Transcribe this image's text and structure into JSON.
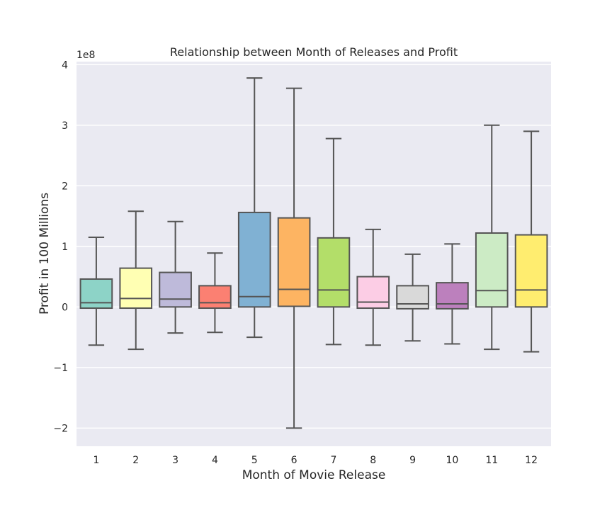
{
  "chart_data": {
    "type": "box",
    "title": "Relationship between Month of Releases and Profit",
    "xlabel": "Month of Movie Release",
    "ylabel": "Profit in 100 Millions",
    "y_offset_label": "1e8",
    "y_scale_factor": 100000000,
    "ylim": [
      -2.3,
      4.05
    ],
    "y_ticks": [
      -2,
      -1,
      0,
      1,
      2,
      3,
      4
    ],
    "y_tick_labels": [
      "−2",
      "−1",
      "0",
      "1",
      "2",
      "3",
      "4"
    ],
    "grid": true,
    "categories": [
      "1",
      "2",
      "3",
      "4",
      "5",
      "6",
      "7",
      "8",
      "9",
      "10",
      "11",
      "12"
    ],
    "boxes": [
      {
        "category": "1",
        "whisker_low": -0.63,
        "q1": -0.02,
        "median": 0.07,
        "q3": 0.46,
        "whisker_high": 1.15,
        "color": "#8dd3c7"
      },
      {
        "category": "2",
        "whisker_low": -0.7,
        "q1": -0.02,
        "median": 0.14,
        "q3": 0.64,
        "whisker_high": 1.58,
        "color": "#ffffb3"
      },
      {
        "category": "3",
        "whisker_low": -0.43,
        "q1": 0.0,
        "median": 0.13,
        "q3": 0.57,
        "whisker_high": 1.41,
        "color": "#bebada"
      },
      {
        "category": "4",
        "whisker_low": -0.42,
        "q1": -0.02,
        "median": 0.07,
        "q3": 0.35,
        "whisker_high": 0.89,
        "color": "#fb8072"
      },
      {
        "category": "5",
        "whisker_low": -0.5,
        "q1": 0.0,
        "median": 0.17,
        "q3": 1.56,
        "whisker_high": 3.78,
        "color": "#80b1d3"
      },
      {
        "category": "6",
        "whisker_low": -2.0,
        "q1": 0.01,
        "median": 0.29,
        "q3": 1.47,
        "whisker_high": 3.61,
        "color": "#fdb462"
      },
      {
        "category": "7",
        "whisker_low": -0.62,
        "q1": 0.0,
        "median": 0.28,
        "q3": 1.14,
        "whisker_high": 2.78,
        "color": "#b3de69"
      },
      {
        "category": "8",
        "whisker_low": -0.63,
        "q1": -0.02,
        "median": 0.08,
        "q3": 0.5,
        "whisker_high": 1.28,
        "color": "#fccde5"
      },
      {
        "category": "9",
        "whisker_low": -0.56,
        "q1": -0.03,
        "median": 0.05,
        "q3": 0.35,
        "whisker_high": 0.87,
        "color": "#d9d9d9"
      },
      {
        "category": "10",
        "whisker_low": -0.61,
        "q1": -0.03,
        "median": 0.05,
        "q3": 0.4,
        "whisker_high": 1.04,
        "color": "#bc80bd"
      },
      {
        "category": "11",
        "whisker_low": -0.7,
        "q1": 0.0,
        "median": 0.27,
        "q3": 1.22,
        "whisker_high": 3.0,
        "color": "#ccebc5"
      },
      {
        "category": "12",
        "whisker_low": -0.74,
        "q1": 0.0,
        "median": 0.28,
        "q3": 1.19,
        "whisker_high": 2.9,
        "color": "#ffed6f"
      }
    ],
    "colors": {
      "plot_background": "#eaeaf2",
      "grid": "#ffffff",
      "box_edge": "#555555"
    }
  }
}
